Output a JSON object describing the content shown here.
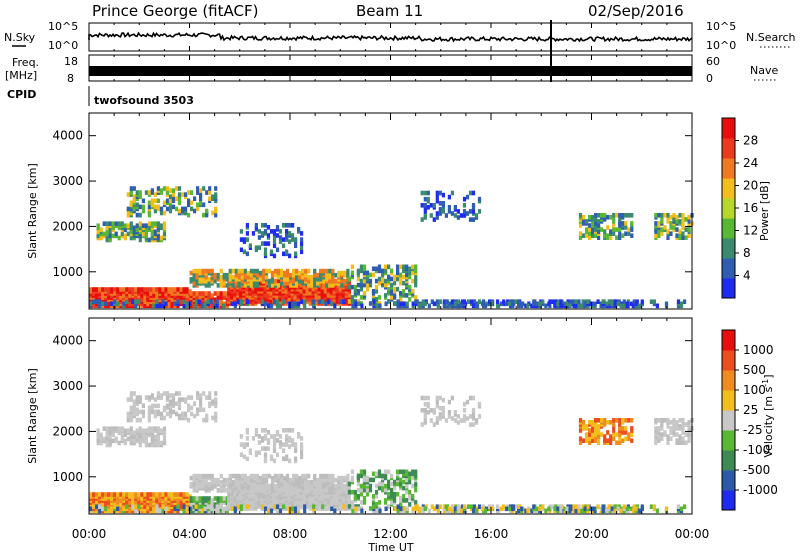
{
  "header": {
    "station": "Prince George (fitACF)",
    "beam": "Beam 11",
    "date": "02/Sep/2016"
  },
  "top_panels": {
    "nsky_label": "N.Sky",
    "nsearch_label": "N.Search",
    "freq_label_1": "Freq.",
    "freq_label_2": "[MHz]",
    "nave_label": "Nave",
    "cpid_label": "CPID",
    "cpid_value": "twofsound 3503",
    "noise_ticks": [
      "10^5",
      "10^0"
    ],
    "freq_ticks": [
      "18",
      "8"
    ],
    "nave_ticks": [
      "60",
      "0"
    ]
  },
  "chart_data": [
    {
      "type": "heatmap",
      "name": "power",
      "xlabel": "Time UT",
      "ylabel": "Slant Range [km]",
      "x_ticks": [
        "00:00",
        "04:00",
        "08:00",
        "12:00",
        "16:00",
        "20:00",
        "00:00"
      ],
      "x_range_hours": [
        0,
        24
      ],
      "y_ticks": [
        1000,
        2000,
        3000,
        4000
      ],
      "ylim": [
        180,
        4500
      ],
      "colorbar_label": "Power [dB]",
      "colorbar_ticks": [
        4,
        8,
        12,
        16,
        20,
        24,
        28
      ],
      "colorbar_range": [
        0,
        32
      ],
      "colorbar_colors": [
        "#1f2cf0",
        "#2e5db1",
        "#3b8a70",
        "#58b733",
        "#b8d828",
        "#f3bd1c",
        "#f07820",
        "#ec3a1e",
        "#e80e0e"
      ]
    },
    {
      "type": "heatmap",
      "name": "velocity",
      "xlabel": "Time UT",
      "ylabel": "Slant Range [km]",
      "x_ticks": [
        "00:00",
        "04:00",
        "08:00",
        "12:00",
        "16:00",
        "20:00",
        "00:00"
      ],
      "x_range_hours": [
        0,
        24
      ],
      "y_ticks": [
        1000,
        2000,
        3000,
        4000
      ],
      "ylim": [
        180,
        4500
      ],
      "colorbar_label": "Velocity [m s^-1]",
      "colorbar_ticks": [
        1000,
        500,
        100,
        25,
        -25,
        -100,
        -500,
        -1000
      ],
      "colorbar_colors": [
        "#1f2cf0",
        "#2d5aa8",
        "#3d8a55",
        "#58b733",
        "#c8c8c8",
        "#f3bd1c",
        "#f08b20",
        "#ec4d1e",
        "#e80e0e"
      ]
    }
  ]
}
